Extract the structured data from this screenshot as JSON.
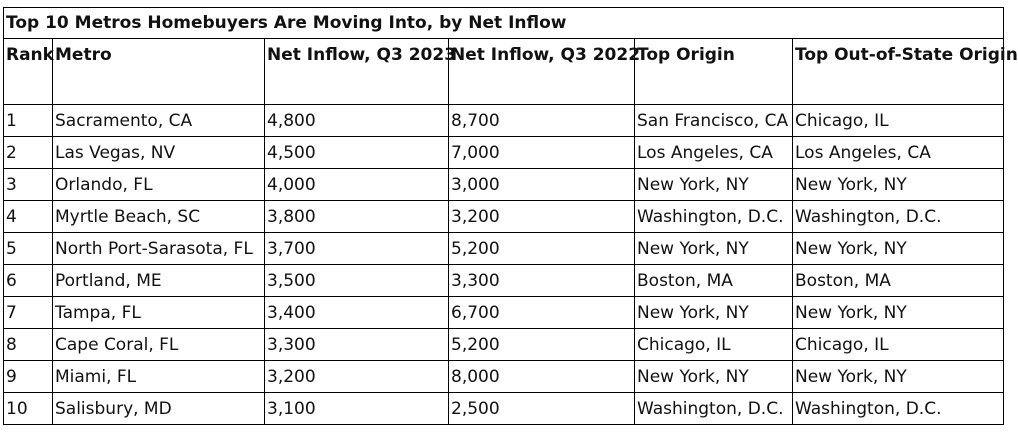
{
  "title": "Top 10 Metros Homebuyers Are Moving Into, by Net Inflow",
  "headers": [
    "Rank",
    "Metro",
    "Net Inflow, Q3 2023",
    "Net Inflow, Q3 2022",
    "Top Origin",
    "Top Out-of-State Origin"
  ],
  "rows": [
    [
      "1",
      "Sacramento, CA",
      "4,800",
      "8,700",
      "San Francisco, CA",
      "Chicago, IL"
    ],
    [
      "2",
      "Las Vegas, NV",
      "4,500",
      "7,000",
      "Los Angeles, CA",
      "Los Angeles, CA"
    ],
    [
      "3",
      "Orlando, FL",
      "4,000",
      "3,000",
      "New York, NY",
      "New York, NY"
    ],
    [
      "4",
      "Myrtle Beach, SC",
      "3,800",
      "3,200",
      "Washington, D.C.",
      "Washington, D.C."
    ],
    [
      "5",
      "North Port-Sarasota, FL",
      "3,700",
      "5,200",
      "New York, NY",
      "New York, NY"
    ],
    [
      "6",
      "Portland, ME",
      "3,500",
      "3,300",
      "Boston, MA",
      "Boston, MA"
    ],
    [
      "7",
      "Tampa, FL",
      "3,400",
      "6,700",
      "New York, NY",
      "New York, NY"
    ],
    [
      "8",
      "Cape Coral, FL",
      "3,300",
      "5,200",
      "Chicago, IL",
      "Chicago, IL"
    ],
    [
      "9",
      "Miami, FL",
      "3,200",
      "8,000",
      "New York, NY",
      "New York, NY"
    ],
    [
      "10",
      "Salisbury, MD",
      "3,100",
      "2,500",
      "Washington, D.C.",
      "Washington, D.C."
    ]
  ]
}
